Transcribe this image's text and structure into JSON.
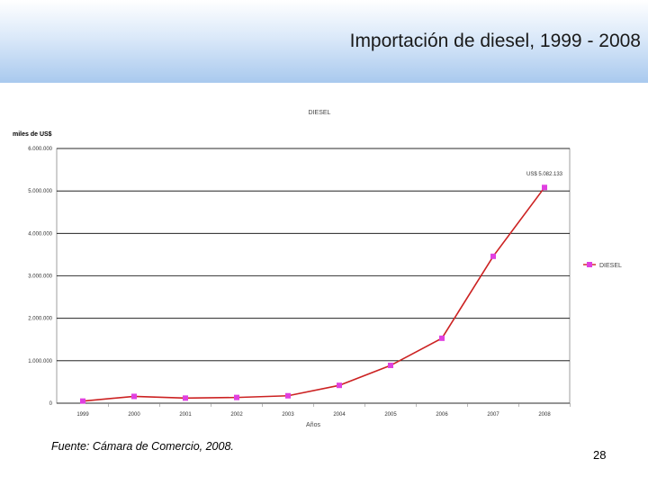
{
  "slide": {
    "title": "Importación de diesel, 1999 - 2008",
    "source": "Fuente: Cámara de Comercio, 2008.",
    "page_number": "28"
  },
  "chart_data": {
    "type": "line",
    "title": "DIESEL",
    "ylabel": "miles de US$",
    "xlabel": "Años",
    "categories": [
      "1999",
      "2000",
      "2001",
      "2002",
      "2003",
      "2004",
      "2005",
      "2006",
      "2007",
      "2008"
    ],
    "series": [
      {
        "name": "DIESEL",
        "values": [
          50000,
          160000,
          120000,
          135000,
          175000,
          420000,
          890000,
          1530000,
          3460000,
          5082133
        ],
        "line_color": "#cc2222",
        "marker_color": "#e040e0"
      }
    ],
    "ylim": [
      0,
      6000000
    ],
    "yticks": [
      "0",
      "1.000.000",
      "2.000.000",
      "3.000.000",
      "4.000.000",
      "5.000.000",
      "6.000.000"
    ],
    "annotation": "US$ 5.082.133",
    "grid": true,
    "legend_position": "right"
  }
}
